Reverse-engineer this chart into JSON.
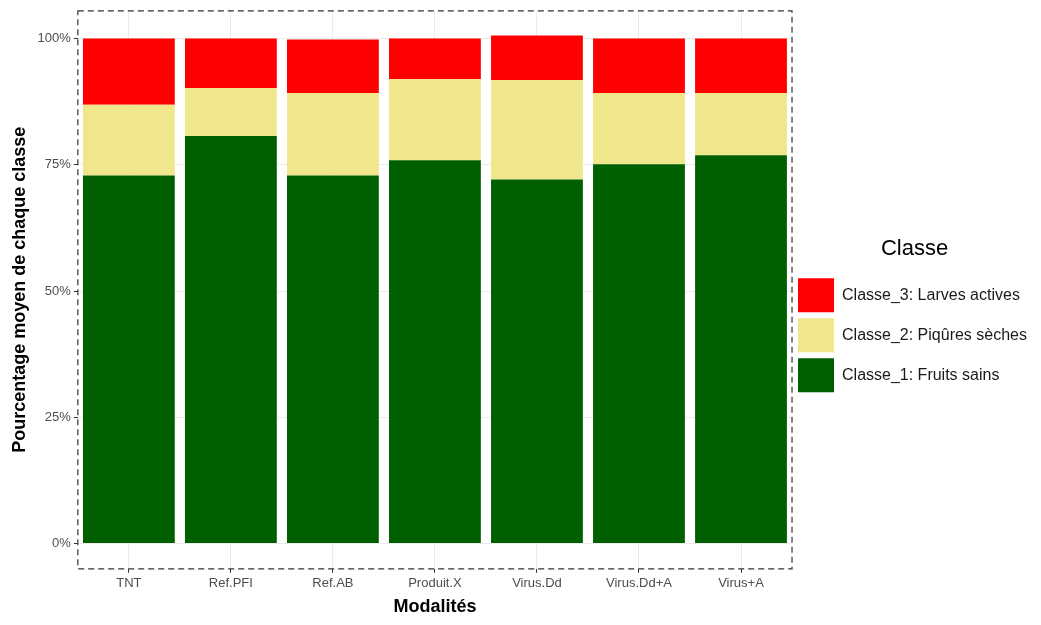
{
  "chart_data": {
    "type": "bar",
    "stacked": true,
    "xlabel": "Modalités",
    "ylabel": "Pourcentage moyen de chaque classe",
    "legend_title": "Classe",
    "categories": [
      "TNT",
      "Ref.PFI",
      "Ref.AB",
      "Produit.X",
      "Virus.Dd",
      "Virus.Dd+A",
      "Virus+A"
    ],
    "series": [
      {
        "name": "Classe_1: Fruits sains",
        "color": "#006000",
        "values": [
          72.9,
          80.7,
          72.9,
          75.9,
          72.1,
          75.1,
          76.9
        ]
      },
      {
        "name": "Classe_2: Piqûres sèches",
        "color": "#f0e68c",
        "values": [
          14.0,
          9.5,
          16.3,
          16.1,
          19.7,
          14.1,
          12.3
        ]
      },
      {
        "name": "Classe_3: Larves actives",
        "color": "#ff0000",
        "values": [
          13.1,
          9.8,
          10.6,
          8.0,
          8.8,
          10.8,
          10.8
        ]
      }
    ],
    "ylim": [
      -5,
      105.5
    ],
    "yticks": [
      {
        "value": 0,
        "label": "0%"
      },
      {
        "value": 25,
        "label": "25%"
      },
      {
        "value": 50,
        "label": "50%"
      },
      {
        "value": 75,
        "label": "75%"
      },
      {
        "value": 100,
        "label": "100%"
      }
    ],
    "grid": true,
    "legend": "right"
  }
}
